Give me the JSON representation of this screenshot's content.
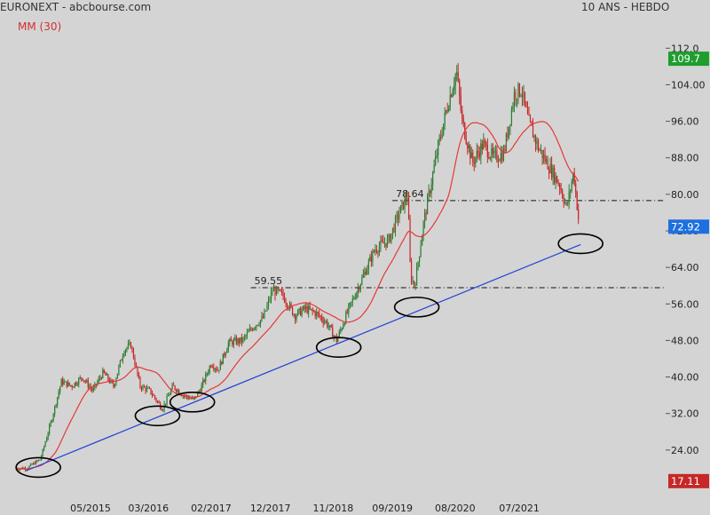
{
  "header": {
    "source": "EURONEXT - abcbourse.com",
    "indicator": "MM (30)",
    "period": "10 ANS - HEBDO"
  },
  "colors": {
    "background": "#d4d4d4",
    "up_candle": "#2e7d32",
    "down_candle": "#c62828",
    "moving_average": "#e53935",
    "trendline": "#1f3fd6",
    "badge_high": "#1e9e2e",
    "badge_last": "#1e6fe0",
    "badge_low": "#c62828",
    "circle": "#000000"
  },
  "chart_data": {
    "type": "line",
    "description_series": [
      "Price (weekly candles)",
      "MM (30)"
    ],
    "ylim": [
      16,
      114
    ],
    "yticks": [
      24,
      32,
      40,
      48,
      56,
      64,
      72,
      80,
      88,
      96,
      104,
      112
    ],
    "ytick_labels": [
      "24.00",
      "32.00",
      "40.00",
      "48.00",
      "56.00",
      "64.00",
      "72.00",
      "80.00",
      "88.00",
      "96.00",
      "104.00",
      "112.0"
    ],
    "xlim": [
      2014.3,
      2023.62
    ],
    "xticks": [
      {
        "x": 2015.37,
        "label": "05/2015"
      },
      {
        "x": 2016.2,
        "label": "03/2016"
      },
      {
        "x": 2017.1,
        "label": "02/2017"
      },
      {
        "x": 2017.95,
        "label": "12/2017"
      },
      {
        "x": 2018.85,
        "label": "11/2018"
      },
      {
        "x": 2019.7,
        "label": "09/2019"
      },
      {
        "x": 2020.6,
        "label": "08/2020"
      },
      {
        "x": 2021.52,
        "label": "07/2021"
      }
    ],
    "price_anchors": [
      [
        2014.3,
        20.0
      ],
      [
        2014.45,
        20.0
      ],
      [
        2014.65,
        22.0
      ],
      [
        2014.8,
        30.0
      ],
      [
        2014.95,
        39.0
      ],
      [
        2015.1,
        38.0
      ],
      [
        2015.25,
        40.0
      ],
      [
        2015.4,
        37.0
      ],
      [
        2015.55,
        41.0
      ],
      [
        2015.7,
        38.0
      ],
      [
        2015.85,
        46.0
      ],
      [
        2015.95,
        47.0
      ],
      [
        2016.08,
        38.0
      ],
      [
        2016.22,
        37.0
      ],
      [
        2016.4,
        33.0
      ],
      [
        2016.55,
        38.0
      ],
      [
        2016.7,
        36.0
      ],
      [
        2016.85,
        35.0
      ],
      [
        2016.95,
        37.5
      ],
      [
        2017.1,
        43.0
      ],
      [
        2017.2,
        41.5
      ],
      [
        2017.35,
        47.5
      ],
      [
        2017.55,
        48.0
      ],
      [
        2017.7,
        51.0
      ],
      [
        2017.85,
        53.0
      ],
      [
        2017.98,
        59.0
      ],
      [
        2018.12,
        58.0
      ],
      [
        2018.3,
        53.5
      ],
      [
        2018.45,
        55.0
      ],
      [
        2018.6,
        54.0
      ],
      [
        2018.75,
        52.0
      ],
      [
        2018.9,
        48.0
      ],
      [
        2019.05,
        54.0
      ],
      [
        2019.25,
        61.0
      ],
      [
        2019.45,
        68.0
      ],
      [
        2019.65,
        70.0
      ],
      [
        2019.8,
        76.0
      ],
      [
        2019.92,
        80.0
      ],
      [
        2019.96,
        62.0
      ],
      [
        2020.02,
        60.0
      ],
      [
        2020.15,
        74.0
      ],
      [
        2020.35,
        90.0
      ],
      [
        2020.5,
        100.0
      ],
      [
        2020.62,
        107.0
      ],
      [
        2020.7,
        96.0
      ],
      [
        2020.85,
        87.0
      ],
      [
        2021.0,
        91.0
      ],
      [
        2021.15,
        88.0
      ],
      [
        2021.3,
        89.0
      ],
      [
        2021.45,
        102.0
      ],
      [
        2021.55,
        103.0
      ],
      [
        2021.65,
        96.0
      ],
      [
        2021.8,
        90.0
      ],
      [
        2021.95,
        86.0
      ],
      [
        2022.1,
        82.0
      ],
      [
        2022.2,
        77.0
      ],
      [
        2022.3,
        85.0
      ],
      [
        2022.38,
        73.0
      ]
    ],
    "levels": [
      {
        "label": "78.64",
        "value": 78.64,
        "x_start": 2019.7
      },
      {
        "label": "59.55",
        "value": 59.55,
        "x_start": 2017.67
      }
    ],
    "trendline": {
      "from": [
        2014.45,
        19.5
      ],
      "to": [
        2022.4,
        69.0
      ]
    },
    "support_circles": [
      {
        "x": 2014.62,
        "y": 20.2
      },
      {
        "x": 2016.33,
        "y": 31.5
      },
      {
        "x": 2016.83,
        "y": 34.5
      },
      {
        "x": 2018.93,
        "y": 46.5
      },
      {
        "x": 2020.05,
        "y": 55.3
      },
      {
        "x": 2022.4,
        "y": 69.2
      }
    ],
    "badges": [
      {
        "label": "109.7",
        "value": 109.7,
        "kind": "high"
      },
      {
        "label": "72.92",
        "value": 72.92,
        "kind": "last"
      },
      {
        "label": "17.11",
        "value": 17.11,
        "kind": "low"
      }
    ]
  }
}
